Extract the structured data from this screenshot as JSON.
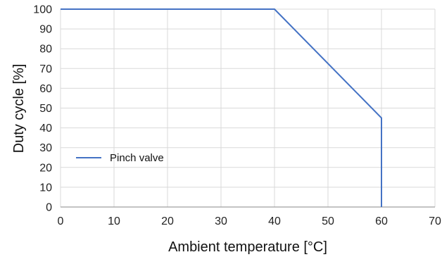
{
  "chart_data": {
    "type": "line",
    "title": "",
    "xlabel": "Ambient temperature [°C]",
    "ylabel": "Duty cycle [%]",
    "xlim": [
      0,
      70
    ],
    "ylim": [
      0,
      100
    ],
    "x_ticks": [
      0,
      10,
      20,
      30,
      40,
      50,
      60,
      70
    ],
    "y_ticks": [
      0,
      10,
      20,
      30,
      40,
      50,
      60,
      70,
      80,
      90,
      100
    ],
    "grid": true,
    "legend_position": "center-left",
    "series": [
      {
        "name": "Pinch valve",
        "color": "#4472c4",
        "points": [
          {
            "x": 0,
            "y": 100
          },
          {
            "x": 40,
            "y": 100
          },
          {
            "x": 60,
            "y": 45
          },
          {
            "x": 60,
            "y": 0
          }
        ]
      }
    ]
  }
}
